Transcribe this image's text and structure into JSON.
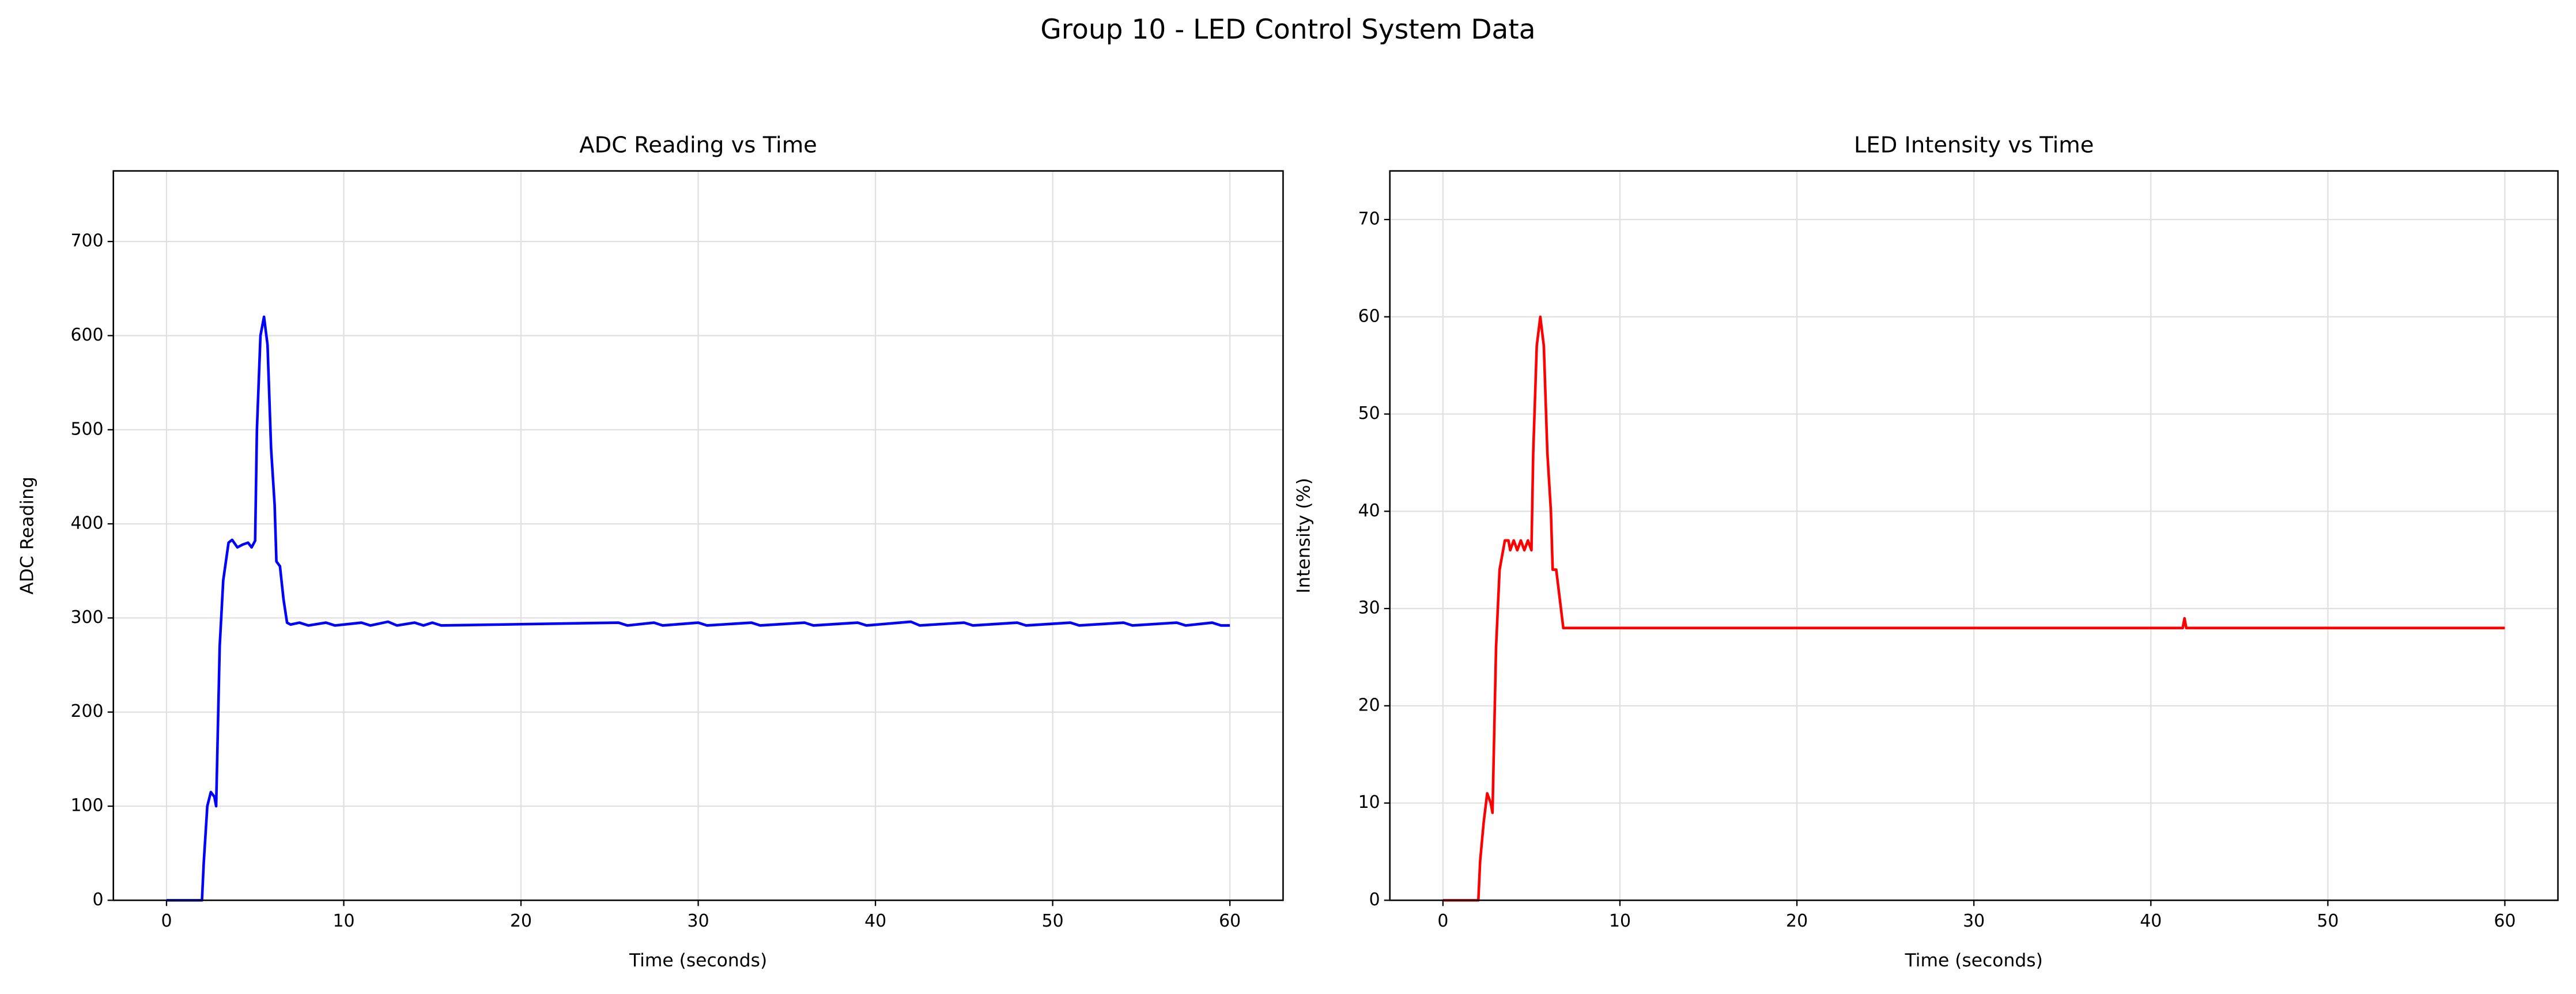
{
  "title": "Group 10 - LED Control System Data",
  "chart_data": [
    {
      "type": "line",
      "title": "ADC Reading vs Time",
      "xlabel": "Time (seconds)",
      "ylabel": "ADC Reading",
      "xlim": [
        -3,
        63
      ],
      "xticks": [
        0,
        10,
        20,
        30,
        40,
        50,
        60
      ],
      "ylim": [
        0,
        775
      ],
      "yticks": [
        0,
        100,
        200,
        300,
        400,
        500,
        600,
        700
      ],
      "grid": true,
      "x": [
        0,
        2,
        2.1,
        2.3,
        2.5,
        2.7,
        2.8,
        3.0,
        3.2,
        3.5,
        3.7,
        4.0,
        4.3,
        4.6,
        4.8,
        5.0,
        5.1,
        5.3,
        5.5,
        5.7,
        5.9,
        6.1,
        6.2,
        6.4,
        6.6,
        6.8,
        7.0,
        7.5,
        8,
        9,
        9.5,
        11,
        11.5,
        12.5,
        13,
        14,
        14.5,
        15,
        15.5,
        25.5,
        26,
        27.5,
        28,
        30,
        30.5,
        33,
        33.5,
        36,
        36.5,
        39,
        39.5,
        42,
        42.5,
        45,
        45.5,
        48,
        48.5,
        51,
        51.5,
        54,
        54.5,
        57,
        57.5,
        59,
        59.5,
        60
      ],
      "series": [
        {
          "name": "ADC Reading",
          "color": "#0000ff",
          "values": [
            0,
            0,
            40,
            100,
            115,
            110,
            100,
            270,
            340,
            380,
            383,
            375,
            378,
            380,
            375,
            382,
            500,
            600,
            620,
            590,
            480,
            420,
            360,
            355,
            320,
            295,
            293,
            295,
            292,
            295,
            292,
            295,
            292,
            296,
            292,
            295,
            292,
            295,
            292,
            295,
            292,
            295,
            292,
            295,
            292,
            295,
            292,
            295,
            292,
            295,
            292,
            296,
            292,
            295,
            292,
            295,
            292,
            295,
            292,
            295,
            292,
            295,
            292,
            295,
            292,
            292
          ]
        }
      ]
    },
    {
      "type": "line",
      "title": "LED Intensity vs Time",
      "xlabel": "Time (seconds)",
      "ylabel": "Intensity (%)",
      "xlim": [
        -3,
        63
      ],
      "xticks": [
        0,
        10,
        20,
        30,
        40,
        50,
        60
      ],
      "ylim": [
        0,
        75
      ],
      "yticks": [
        0,
        10,
        20,
        30,
        40,
        50,
        60,
        70
      ],
      "grid": true,
      "x": [
        0,
        2,
        2.1,
        2.3,
        2.5,
        2.7,
        2.8,
        3.0,
        3.2,
        3.5,
        3.7,
        3.8,
        4.0,
        4.2,
        4.4,
        4.6,
        4.8,
        5.0,
        5.1,
        5.3,
        5.5,
        5.7,
        5.9,
        6.1,
        6.2,
        6.4,
        6.6,
        6.8,
        41.8,
        41.9,
        42,
        60
      ],
      "series": [
        {
          "name": "LED Intensity",
          "color": "#ff0000",
          "values": [
            0,
            0,
            4,
            8,
            11,
            10,
            9,
            26,
            34,
            37,
            37,
            36,
            37,
            36,
            37,
            36,
            37,
            36,
            46,
            57,
            60,
            57,
            46,
            40,
            34,
            34,
            31,
            28,
            28,
            29,
            28,
            28
          ]
        }
      ]
    }
  ]
}
